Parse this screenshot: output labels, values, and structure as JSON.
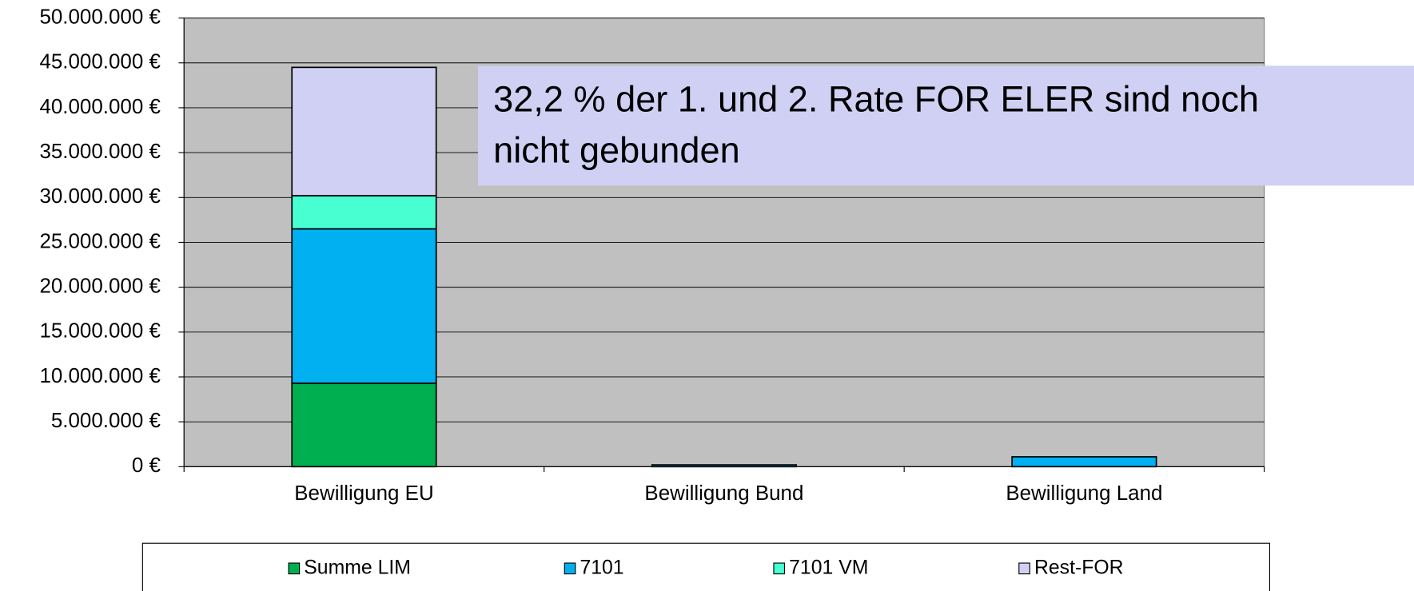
{
  "chart_data": {
    "type": "bar",
    "stacked": true,
    "categories": [
      "Bewilligung EU",
      "Bewilligung Bund",
      "Bewilligung Land"
    ],
    "series": [
      {
        "name": "Summe LIM",
        "color": "#00b050",
        "values": [
          9300000,
          0,
          0
        ]
      },
      {
        "name": "7101",
        "color": "#00b0f0",
        "values": [
          17200000,
          200000,
          1100000
        ]
      },
      {
        "name": "7101 VM",
        "color": "#47ffd0",
        "values": [
          3700000,
          0,
          0
        ]
      },
      {
        "name": "Rest-FOR",
        "color": "#d0d0f4",
        "values": [
          14300000,
          0,
          0
        ]
      }
    ],
    "ylim": [
      0,
      50000000
    ],
    "yticks": [
      {
        "value": 0,
        "label": "0 €"
      },
      {
        "value": 5000000,
        "label": "5.000.000 €"
      },
      {
        "value": 10000000,
        "label": "10.000.000 €"
      },
      {
        "value": 15000000,
        "label": "15.000.000 €"
      },
      {
        "value": 20000000,
        "label": "20.000.000 €"
      },
      {
        "value": 25000000,
        "label": "25.000.000 €"
      },
      {
        "value": 30000000,
        "label": "30.000.000 €"
      },
      {
        "value": 35000000,
        "label": "35.000.000 €"
      },
      {
        "value": 40000000,
        "label": "40.000.000 €"
      },
      {
        "value": 45000000,
        "label": "45.000.000 €"
      },
      {
        "value": 50000000,
        "label": "50.000.000 €"
      }
    ],
    "grid": true,
    "legend": "bottom",
    "annotation": [
      "32,2 % der 1. und 2. Rate FOR ELER sind noch",
      "nicht gebunden"
    ]
  }
}
